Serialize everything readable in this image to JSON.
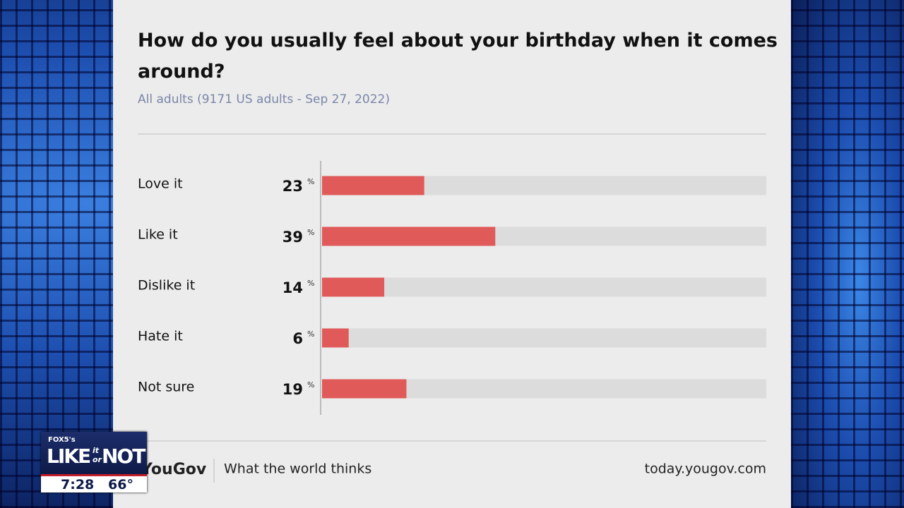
{
  "chart_data": {
    "type": "bar",
    "orientation": "horizontal",
    "title": "How do you usually feel about your birthday when it comes around?",
    "subtitle": "All adults (9171 US adults - Sep 27, 2022)",
    "categories": [
      "Love it",
      "Like it",
      "Dislike it",
      "Hate it",
      "Not sure"
    ],
    "values": [
      23,
      39,
      14,
      6,
      19
    ],
    "unit": "%",
    "color": "#e05a5a",
    "track_color": "#dcdcdc",
    "xlim": [
      0,
      100
    ]
  },
  "footer": {
    "brand": "YouGov",
    "tagline": "What the world thinks",
    "url": "today.yougov.com"
  },
  "broadcast": {
    "station": "FOX5's",
    "show": [
      "LIKE",
      "it",
      "or",
      "NOT"
    ],
    "time": "7:28",
    "temperature": "66°"
  }
}
